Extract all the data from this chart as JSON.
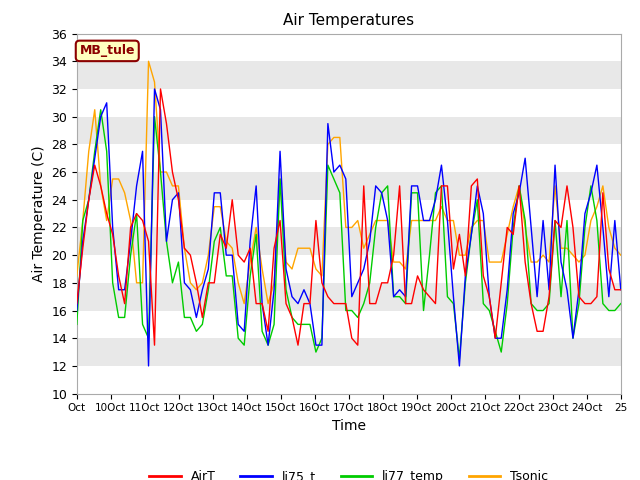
{
  "title": "Air Temperatures",
  "xlabel": "Time",
  "ylabel": "Air Temperature (C)",
  "ylim": [
    10,
    36
  ],
  "xlim": [
    0,
    16
  ],
  "xtick_labels": [
    "Oct",
    "10Oct",
    "11Oct",
    "12Oct",
    "13Oct",
    "14Oct",
    "15Oct",
    "16Oct",
    "17Oct",
    "18Oct",
    "19Oct",
    "20Oct",
    "21Oct",
    "22Oct",
    "23Oct",
    "24Oct",
    "25"
  ],
  "annotation_text": "MB_tule",
  "annotation_facecolor": "#FFFFC0",
  "annotation_edgecolor": "#8B0000",
  "annotation_textcolor": "#8B0000",
  "colors": {
    "AirT": "#FF0000",
    "li75_t": "#0000FF",
    "li77_temp": "#00CC00",
    "Tsonic": "#FFA500"
  },
  "strip_light": "#FFFFFF",
  "strip_dark": "#E8E8E8",
  "AirT": [
    16.5,
    20.5,
    24.0,
    26.5,
    25.0,
    23.0,
    21.5,
    18.5,
    16.5,
    22.0,
    23.0,
    22.5,
    21.0,
    13.5,
    32.0,
    29.5,
    26.0,
    24.0,
    20.5,
    20.0,
    18.0,
    15.5,
    18.0,
    18.0,
    21.5,
    20.5,
    24.0,
    20.0,
    19.5,
    20.5,
    16.5,
    16.5,
    14.5,
    20.5,
    22.5,
    16.5,
    15.5,
    13.5,
    16.5,
    16.5,
    22.5,
    18.0,
    17.0,
    16.5,
    16.5,
    16.5,
    14.0,
    13.5,
    25.0,
    16.5,
    16.5,
    18.0,
    18.0,
    20.0,
    25.0,
    16.5,
    16.5,
    18.5,
    17.5,
    17.0,
    16.5,
    25.0,
    25.0,
    19.0,
    21.5,
    18.5,
    25.0,
    25.5,
    18.5,
    17.0,
    14.0,
    18.0,
    22.0,
    21.5,
    25.0,
    19.5,
    16.5,
    14.5,
    14.5,
    17.0,
    22.5,
    22.0,
    25.0,
    22.0,
    17.0,
    16.5,
    16.5,
    17.0,
    24.5,
    19.0,
    17.5,
    17.5
  ],
  "li75_t": [
    16.0,
    21.0,
    24.0,
    27.0,
    30.0,
    31.0,
    22.0,
    17.5,
    17.5,
    21.0,
    25.0,
    27.5,
    12.0,
    32.0,
    30.5,
    21.0,
    24.0,
    24.5,
    18.0,
    17.5,
    15.5,
    17.5,
    19.0,
    24.5,
    24.5,
    20.0,
    20.0,
    15.0,
    14.5,
    21.0,
    25.0,
    16.5,
    13.5,
    17.5,
    27.5,
    19.0,
    17.0,
    16.5,
    17.5,
    16.5,
    13.5,
    13.5,
    29.5,
    26.0,
    26.5,
    25.5,
    17.0,
    18.0,
    19.0,
    21.0,
    25.0,
    24.5,
    22.5,
    17.0,
    17.5,
    17.0,
    25.0,
    25.0,
    22.5,
    22.5,
    24.0,
    26.5,
    22.5,
    17.0,
    12.0,
    18.5,
    21.5,
    25.0,
    23.0,
    17.0,
    14.0,
    14.0,
    17.5,
    23.0,
    24.5,
    27.0,
    22.0,
    17.0,
    22.5,
    17.5,
    26.5,
    19.5,
    17.5,
    14.0,
    17.5,
    23.0,
    24.5,
    26.5,
    22.0,
    17.0,
    22.5,
    17.5
  ],
  "li77_temp": [
    15.0,
    22.5,
    24.0,
    27.5,
    30.5,
    27.5,
    18.0,
    15.5,
    15.5,
    20.0,
    23.0,
    15.0,
    14.0,
    30.0,
    26.0,
    21.0,
    18.0,
    19.5,
    15.5,
    15.5,
    14.5,
    15.0,
    17.5,
    21.0,
    22.0,
    18.5,
    18.5,
    14.0,
    13.5,
    18.5,
    21.5,
    14.5,
    13.5,
    15.0,
    25.5,
    17.5,
    15.5,
    15.0,
    15.0,
    15.0,
    13.0,
    14.0,
    26.5,
    25.5,
    24.5,
    16.0,
    16.0,
    15.5,
    16.5,
    18.0,
    22.0,
    24.5,
    25.0,
    17.0,
    17.0,
    16.5,
    24.5,
    24.5,
    16.0,
    20.0,
    24.5,
    25.0,
    17.0,
    16.5,
    12.5,
    18.0,
    21.5,
    24.0,
    16.5,
    16.0,
    14.5,
    13.0,
    16.5,
    22.0,
    25.0,
    22.5,
    16.5,
    16.0,
    16.0,
    16.5,
    22.5,
    17.0,
    22.5,
    14.0,
    16.5,
    22.0,
    25.0,
    22.5,
    16.5,
    16.0,
    16.0,
    16.5
  ],
  "Tsonic": [
    18.5,
    22.5,
    27.5,
    30.5,
    25.0,
    22.5,
    25.5,
    25.5,
    24.5,
    22.5,
    18.0,
    18.0,
    34.0,
    32.5,
    26.0,
    26.0,
    25.0,
    25.0,
    20.5,
    18.0,
    17.5,
    18.0,
    20.0,
    23.5,
    23.5,
    21.0,
    20.5,
    18.0,
    16.5,
    19.5,
    22.0,
    19.0,
    16.5,
    18.0,
    25.5,
    19.5,
    19.0,
    20.5,
    20.5,
    20.5,
    19.0,
    18.5,
    28.0,
    28.5,
    28.5,
    22.0,
    22.0,
    22.5,
    20.5,
    21.5,
    22.5,
    22.5,
    22.5,
    19.5,
    19.5,
    19.0,
    22.5,
    22.5,
    22.5,
    22.5,
    22.5,
    23.5,
    22.5,
    22.5,
    20.0,
    20.0,
    22.0,
    22.5,
    22.5,
    19.5,
    19.5,
    19.5,
    21.5,
    23.5,
    25.0,
    22.0,
    19.5,
    19.5,
    20.0,
    19.5,
    25.0,
    20.5,
    20.5,
    20.0,
    19.5,
    20.0,
    22.5,
    23.5,
    25.0,
    22.0,
    20.5,
    20.0
  ]
}
